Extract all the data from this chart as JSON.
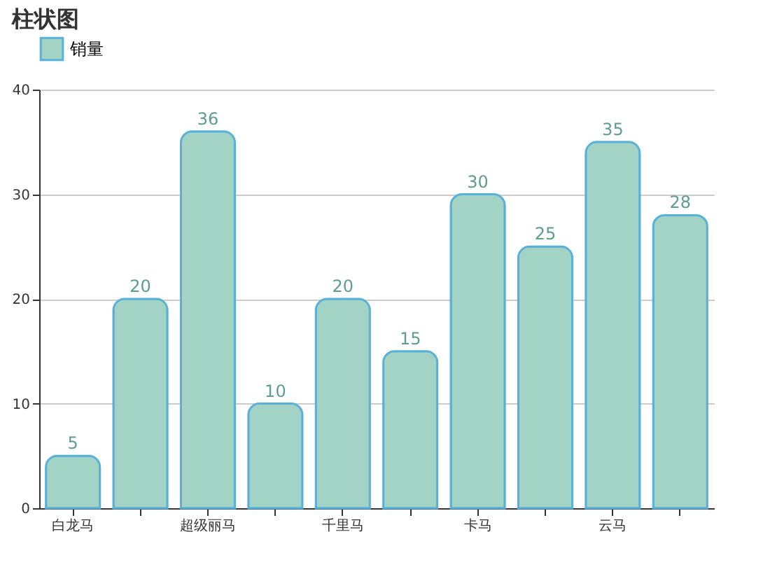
{
  "chart_data": {
    "type": "bar",
    "title": "柱状图",
    "categories": [
      "白龙马",
      null,
      "超级丽马",
      null,
      "千里马",
      null,
      "卡马",
      null,
      "云马",
      null
    ],
    "series": [
      {
        "name": "销量",
        "color": "#a3d3c4",
        "values": [
          5,
          20,
          36,
          10,
          20,
          15,
          30,
          25,
          35,
          28
        ]
      }
    ],
    "ylim": [
      0,
      40
    ],
    "yticks": [
      0,
      10,
      20,
      30,
      40
    ],
    "grid": "y",
    "legend": "top",
    "data_labels": true
  }
}
